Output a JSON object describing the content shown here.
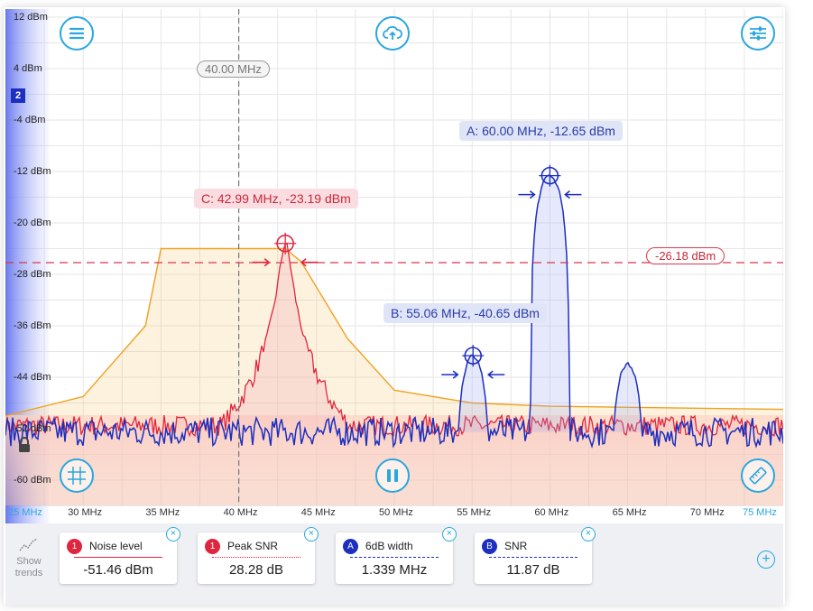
{
  "colors": {
    "accent": "#2aa7e0",
    "traceRed": "#e0263e",
    "traceBlue": "#1d2fbf",
    "traceOrange": "#f0a020"
  },
  "axes": {
    "y_labels": [
      "12 dBm",
      "4 dBm",
      "-4 dBm",
      "-12 dBm",
      "-20 dBm",
      "-28 dBm",
      "-36 dBm",
      "-44 dBm",
      "-52 dBm",
      "-60 dBm"
    ],
    "x_labels": [
      "25 MHz",
      "30 MHz",
      "35 MHz",
      "40 MHz",
      "45 MHz",
      "50 MHz",
      "55 MHz",
      "60 MHz",
      "65 MHz",
      "70 MHz",
      "75 MHz"
    ]
  },
  "toolbar": {
    "menu_icon": "hamburger-menu-icon",
    "cloud_icon": "cloud-upload-icon",
    "settings_icon": "sliders-icon",
    "grid_icon": "grid-crosshair-icon",
    "pause_icon": "pause-icon",
    "ruler_icon": "ruler-icon",
    "lock_icon": "lock-icon"
  },
  "trace_badge": "2",
  "cursor": {
    "frequency_label": "40.00 MHz",
    "frequency_mhz": 40.0
  },
  "threshold": {
    "level_label": "-26.18 dBm",
    "level_dbm": -26.18
  },
  "markers": [
    {
      "id": "A",
      "label": "A: 60.00 MHz, -12.65 dBm",
      "freq_mhz": 60.0,
      "level_dbm": -12.65
    },
    {
      "id": "B",
      "label": "B: 55.06 MHz, -40.65 dBm",
      "freq_mhz": 55.06,
      "level_dbm": -40.65
    },
    {
      "id": "C",
      "label": "C: 42.99 MHz, -23.19 dBm",
      "freq_mhz": 42.99,
      "level_dbm": -23.19
    }
  ],
  "measurements": [
    {
      "badge": "1",
      "badge_color": "#e0263e",
      "title": "Noise level",
      "value": "-51.46 dBm",
      "line_style": "solid",
      "line_color": "#e0263e"
    },
    {
      "badge": "1",
      "badge_color": "#e0263e",
      "title": "Peak SNR",
      "value": "28.28 dB",
      "line_style": "dotted",
      "line_color": "#e0263e"
    },
    {
      "badge": "A",
      "badge_color": "#1d2fbf",
      "title": "6dB width",
      "value": "1.339 MHz",
      "line_style": "dashed",
      "line_color": "#1d2fbf"
    },
    {
      "badge": "B",
      "badge_color": "#1d2fbf",
      "title": "SNR",
      "value": "11.87 dB",
      "line_style": "dashed",
      "line_color": "#1d2fbf"
    }
  ],
  "trends": {
    "line1": "Show",
    "line2": "trends",
    "icon": "trend-chart-icon"
  },
  "add_icon": "add-circle-icon",
  "close_icon": "close-circle-icon",
  "chart_data": {
    "type": "line",
    "x_unit": "MHz",
    "y_unit": "dBm",
    "xlim": [
      25,
      75
    ],
    "ylim": [
      -64,
      14
    ],
    "series": [
      {
        "color": "#f0a020",
        "shape": "trapezoid",
        "points": [
          [
            25,
            -50
          ],
          [
            30,
            -47
          ],
          [
            34,
            -36
          ],
          [
            35,
            -24
          ],
          [
            43,
            -24
          ],
          [
            44,
            -26
          ],
          [
            47,
            -38
          ],
          [
            50,
            -46
          ],
          [
            55,
            -48
          ],
          [
            60,
            -48.5
          ],
          [
            75,
            -49
          ]
        ]
      },
      {
        "color": "#e0263e",
        "shape": "peak",
        "peak_freq": 43,
        "peak_dbm": -23.19,
        "noise_floor": -51.5
      },
      {
        "color": "#1d2fbf",
        "shape": "multi-peak",
        "noise_floor": -52.5,
        "peaks": [
          [
            55.06,
            -40.65
          ],
          [
            60.0,
            -12.65
          ],
          [
            65.0,
            -42.0
          ]
        ]
      }
    ]
  }
}
